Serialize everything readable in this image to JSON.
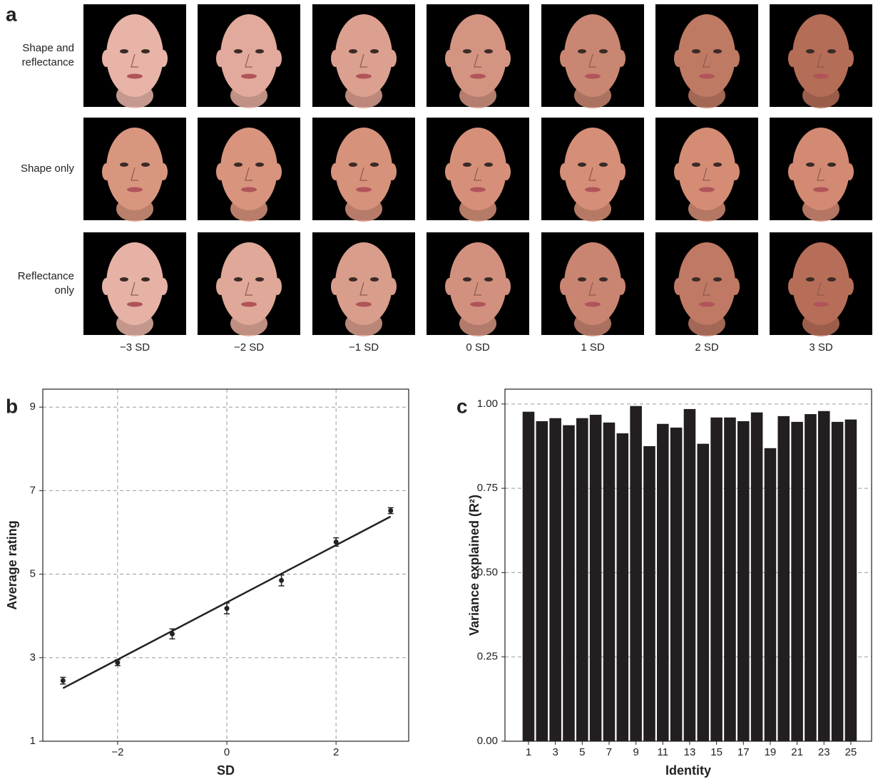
{
  "panel_a": {
    "letter": "a",
    "rows": [
      "Shape and reflectance",
      "Shape only",
      "Reflectance only"
    ],
    "columns": [
      "−3 SD",
      "−2 SD",
      "−1 SD",
      "0 SD",
      "1 SD",
      "2 SD",
      "3 SD"
    ]
  },
  "chart_data": [
    {
      "type": "scatter",
      "panel": "b",
      "xlabel": "SD",
      "ylabel": "Average rating",
      "x": [
        -3,
        -2,
        -1,
        0,
        1,
        2,
        3
      ],
      "values": [
        2.45,
        2.88,
        3.57,
        4.18,
        4.85,
        5.77,
        6.52
      ],
      "errors": [
        0.08,
        0.07,
        0.12,
        0.13,
        0.13,
        0.1,
        0.07
      ],
      "fit": {
        "x": [
          -3,
          3
        ],
        "values": [
          2.27,
          6.38
        ]
      },
      "color": "#222222",
      "xlim": [
        -3.37,
        3.33
      ],
      "ylim": [
        1,
        9.43
      ],
      "xticks": [
        {
          "value": -2,
          "label": "−2"
        },
        0,
        2
      ],
      "yticks": [
        1,
        3,
        5,
        7,
        9
      ],
      "grid": true
    },
    {
      "type": "bar",
      "panel": "c",
      "xlabel": "Identity",
      "ylabel": "Variance explained (R²)",
      "categories": [
        "1",
        null,
        "3",
        null,
        "5",
        null,
        "7",
        null,
        "9",
        null,
        "11",
        null,
        "13",
        null,
        "15",
        null,
        "17",
        null,
        "19",
        null,
        "21",
        null,
        "23",
        null,
        "25"
      ],
      "values": [
        0.977,
        0.949,
        0.958,
        0.937,
        0.958,
        0.968,
        0.945,
        0.913,
        0.994,
        0.875,
        0.941,
        0.93,
        0.985,
        0.882,
        0.96,
        0.96,
        0.949,
        0.975,
        0.869,
        0.964,
        0.947,
        0.97,
        0.979,
        0.947,
        0.954
      ],
      "color": "#231f20",
      "ylim": [
        0,
        1.044
      ],
      "yticks": [
        {
          "value": 0,
          "label": "0.00"
        },
        {
          "value": 0.25,
          "label": "0.25"
        },
        {
          "value": 0.5,
          "label": "0.50"
        },
        {
          "value": 0.75,
          "label": "0.75"
        },
        {
          "value": 1,
          "label": "1.00"
        }
      ],
      "grid": true
    }
  ]
}
